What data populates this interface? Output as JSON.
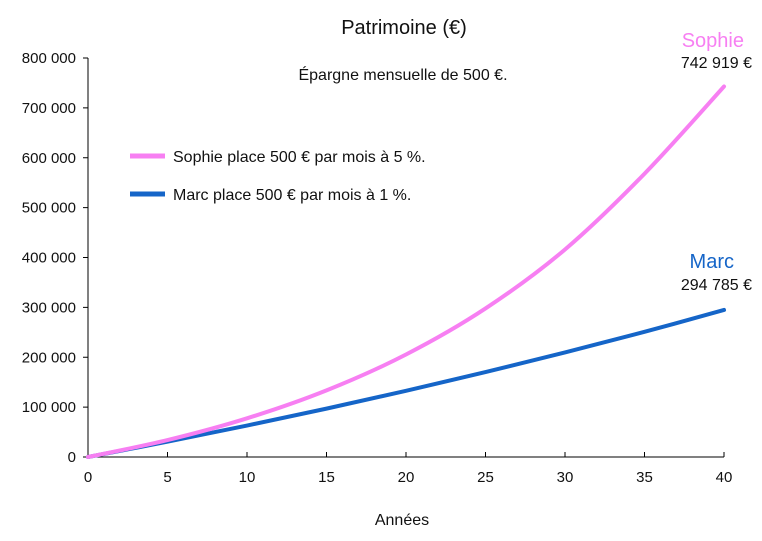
{
  "chart_data": {
    "type": "line",
    "title": "Patrimoine (€)",
    "subtitle": "Épargne mensuelle de 500 €.",
    "xlabel": "Années",
    "ylabel": "",
    "xlim": [
      0,
      40
    ],
    "ylim": [
      0,
      800000
    ],
    "x_ticks": [
      "0",
      "5",
      "10",
      "15",
      "20",
      "25",
      "30",
      "35",
      "40"
    ],
    "y_ticks": [
      "0",
      "100 000",
      "200 000",
      "300 000",
      "400 000",
      "500 000",
      "600 000",
      "700 000",
      "800 000"
    ],
    "grid": false,
    "legend_position": "top-left",
    "x": [
      0,
      5,
      10,
      15,
      20,
      25,
      30,
      35,
      40
    ],
    "series": [
      {
        "name": "Sophie place 500 € par mois à 5 %.",
        "color": "#f77ff2",
        "values": [
          0,
          34000,
          77600,
          133600,
          205500,
          297800,
          416100,
          568000,
          742919
        ],
        "end_label": "Sophie",
        "end_value_label": "742 919 €"
      },
      {
        "name": "Marc place 500 € par mois à 1 %.",
        "color": "#1565c8",
        "values": [
          0,
          30750,
          63050,
          97000,
          132700,
          170200,
          209600,
          251000,
          294785
        ],
        "end_label": "Marc",
        "end_value_label": "294 785 €"
      }
    ]
  }
}
